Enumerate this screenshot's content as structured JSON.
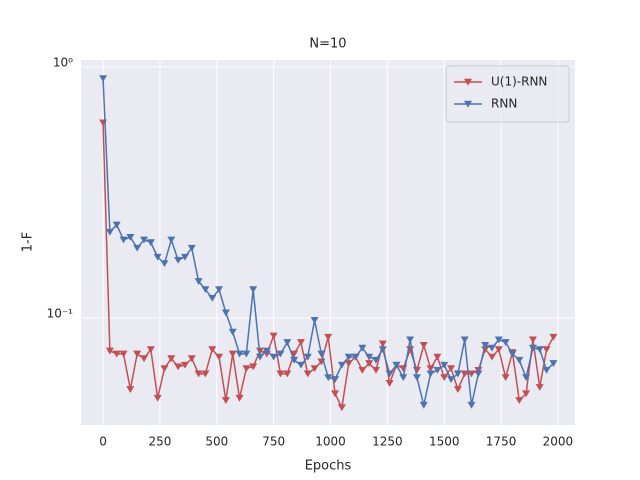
{
  "chart_data": {
    "type": "line",
    "title": "N=10",
    "x_label": "Epochs",
    "y_label": "1-F",
    "x": [
      0,
      30,
      60,
      90,
      120,
      150,
      180,
      210,
      240,
      270,
      300,
      330,
      360,
      390,
      420,
      450,
      480,
      510,
      540,
      570,
      600,
      630,
      660,
      690,
      720,
      750,
      780,
      810,
      840,
      870,
      900,
      930,
      960,
      990,
      1020,
      1050,
      1080,
      1110,
      1140,
      1170,
      1200,
      1230,
      1260,
      1290,
      1320,
      1350,
      1380,
      1410,
      1440,
      1470,
      1500,
      1530,
      1560,
      1590,
      1620,
      1650,
      1680,
      1710,
      1740,
      1770,
      1800,
      1830,
      1860,
      1890,
      1920,
      1950,
      1980
    ],
    "series": [
      {
        "name": "U(1)-RNN",
        "color": "#c44e52",
        "values": [
          0.6,
          0.074,
          0.072,
          0.072,
          0.052,
          0.072,
          0.069,
          0.075,
          0.048,
          0.063,
          0.069,
          0.064,
          0.065,
          0.069,
          0.06,
          0.06,
          0.075,
          0.07,
          0.047,
          0.072,
          0.048,
          0.063,
          0.064,
          0.074,
          0.072,
          0.085,
          0.06,
          0.06,
          0.072,
          0.08,
          0.06,
          0.063,
          0.067,
          0.084,
          0.05,
          0.044,
          0.066,
          0.07,
          0.062,
          0.066,
          0.062,
          0.079,
          0.055,
          0.065,
          0.063,
          0.075,
          0.062,
          0.078,
          0.063,
          0.07,
          0.058,
          0.063,
          0.052,
          0.06,
          0.06,
          0.062,
          0.075,
          0.07,
          0.075,
          0.058,
          0.073,
          0.047,
          0.05,
          0.082,
          0.053,
          0.075,
          0.084
        ]
      },
      {
        "name": "RNN",
        "color": "#4c72b0",
        "values": [
          0.9,
          0.22,
          0.235,
          0.205,
          0.21,
          0.19,
          0.205,
          0.2,
          0.175,
          0.165,
          0.205,
          0.17,
          0.175,
          0.19,
          0.14,
          0.13,
          0.12,
          0.13,
          0.105,
          0.088,
          0.072,
          0.072,
          0.13,
          0.07,
          0.074,
          0.07,
          0.072,
          0.08,
          0.068,
          0.065,
          0.07,
          0.098,
          0.072,
          0.058,
          0.057,
          0.065,
          0.07,
          0.07,
          0.076,
          0.07,
          0.068,
          0.075,
          0.06,
          0.065,
          0.058,
          0.082,
          0.058,
          0.045,
          0.06,
          0.062,
          0.065,
          0.057,
          0.06,
          0.082,
          0.045,
          0.06,
          0.078,
          0.076,
          0.082,
          0.08,
          0.072,
          0.068,
          0.058,
          0.076,
          0.075,
          0.062,
          0.066
        ]
      }
    ],
    "xlim": [
      -97,
      2075
    ],
    "xticks": [
      0,
      250,
      500,
      750,
      1000,
      1250,
      1500,
      1750,
      2000
    ],
    "ylim": [
      0.0375,
      1.066
    ],
    "yscale": "log",
    "yticks": [
      {
        "value": 1,
        "label": "10⁰"
      },
      {
        "value": 0.1,
        "label": "10⁻¹"
      }
    ],
    "grid": true,
    "legend": "upper right"
  }
}
